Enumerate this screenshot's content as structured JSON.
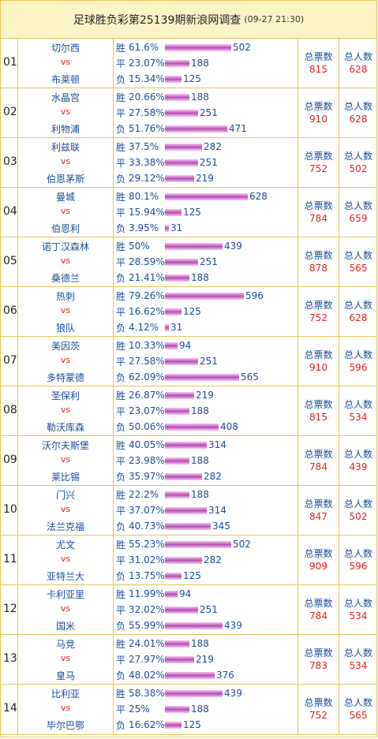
{
  "header": {
    "title": "足球胜负彩第25139期新浪网调查",
    "timestamp": "(09-27 21:30)"
  },
  "labels": {
    "win": "胜",
    "draw": "平",
    "loss": "负",
    "vs": "vs",
    "total_votes": "总票数",
    "total_people": "总人数"
  },
  "bar_scale_max": 628,
  "matches": [
    {
      "no": "01",
      "home": "切尔西",
      "away": "布莱顿",
      "win_pct": "61.6%",
      "win_votes": "502",
      "draw_pct": "23.07%",
      "draw_votes": "188",
      "loss_pct": "15.34%",
      "loss_votes": "125",
      "total_votes": "815",
      "total_people": "628"
    },
    {
      "no": "02",
      "home": "水晶宫",
      "away": "利物浦",
      "win_pct": "20.66%",
      "win_votes": "188",
      "draw_pct": "27.58%",
      "draw_votes": "251",
      "loss_pct": "51.76%",
      "loss_votes": "471",
      "total_votes": "910",
      "total_people": "628"
    },
    {
      "no": "03",
      "home": "利兹联",
      "away": "伯恩茅斯",
      "win_pct": "37.5%",
      "win_votes": "282",
      "draw_pct": "33.38%",
      "draw_votes": "251",
      "loss_pct": "29.12%",
      "loss_votes": "219",
      "total_votes": "752",
      "total_people": "502"
    },
    {
      "no": "04",
      "home": "曼城",
      "away": "伯恩利",
      "win_pct": "80.1%",
      "win_votes": "628",
      "draw_pct": "15.94%",
      "draw_votes": "125",
      "loss_pct": "3.95%",
      "loss_votes": "31",
      "total_votes": "784",
      "total_people": "659"
    },
    {
      "no": "05",
      "home": "诺丁汉森林",
      "away": "桑德兰",
      "win_pct": "50%",
      "win_votes": "439",
      "draw_pct": "28.59%",
      "draw_votes": "251",
      "loss_pct": "21.41%",
      "loss_votes": "188",
      "total_votes": "878",
      "total_people": "565"
    },
    {
      "no": "06",
      "home": "热刺",
      "away": "狼队",
      "win_pct": "79.26%",
      "win_votes": "596",
      "draw_pct": "16.62%",
      "draw_votes": "125",
      "loss_pct": "4.12%",
      "loss_votes": "31",
      "total_votes": "752",
      "total_people": "628"
    },
    {
      "no": "07",
      "home": "美因茨",
      "away": "多特蒙德",
      "win_pct": "10.33%",
      "win_votes": "94",
      "draw_pct": "27.58%",
      "draw_votes": "251",
      "loss_pct": "62.09%",
      "loss_votes": "565",
      "total_votes": "910",
      "total_people": "596"
    },
    {
      "no": "08",
      "home": "圣保利",
      "away": "勒沃库森",
      "win_pct": "26.87%",
      "win_votes": "219",
      "draw_pct": "23.07%",
      "draw_votes": "188",
      "loss_pct": "50.06%",
      "loss_votes": "408",
      "total_votes": "815",
      "total_people": "534"
    },
    {
      "no": "09",
      "home": "沃尔夫斯堡",
      "away": "莱比锡",
      "win_pct": "40.05%",
      "win_votes": "314",
      "draw_pct": "23.98%",
      "draw_votes": "188",
      "loss_pct": "35.97%",
      "loss_votes": "282",
      "total_votes": "784",
      "total_people": "439"
    },
    {
      "no": "10",
      "home": "门兴",
      "away": "法兰克福",
      "win_pct": "22.2%",
      "win_votes": "188",
      "draw_pct": "37.07%",
      "draw_votes": "314",
      "loss_pct": "40.73%",
      "loss_votes": "345",
      "total_votes": "847",
      "total_people": "502"
    },
    {
      "no": "11",
      "home": "尤文",
      "away": "亚特兰大",
      "win_pct": "55.23%",
      "win_votes": "502",
      "draw_pct": "31.02%",
      "draw_votes": "282",
      "loss_pct": "13.75%",
      "loss_votes": "125",
      "total_votes": "909",
      "total_people": "596"
    },
    {
      "no": "12",
      "home": "卡利亚里",
      "away": "国米",
      "win_pct": "11.99%",
      "win_votes": "94",
      "draw_pct": "32.02%",
      "draw_votes": "251",
      "loss_pct": "55.99%",
      "loss_votes": "439",
      "total_votes": "784",
      "total_people": "534"
    },
    {
      "no": "13",
      "home": "马竞",
      "away": "皇马",
      "win_pct": "24.01%",
      "win_votes": "188",
      "draw_pct": "27.97%",
      "draw_votes": "219",
      "loss_pct": "48.02%",
      "loss_votes": "376",
      "total_votes": "783",
      "total_people": "534"
    },
    {
      "no": "14",
      "home": "比利亚",
      "away": "毕尔巴鄂",
      "win_pct": "58.38%",
      "win_votes": "439",
      "draw_pct": "25%",
      "draw_votes": "188",
      "loss_pct": "16.62%",
      "loss_votes": "125",
      "total_votes": "752",
      "total_people": "565"
    }
  ]
}
